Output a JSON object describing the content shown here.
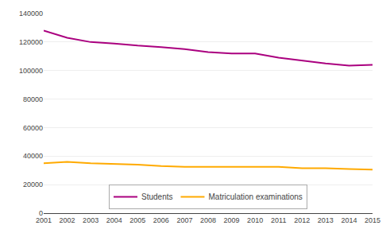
{
  "chart_data": {
    "type": "line",
    "x": [
      2001,
      2002,
      2003,
      2004,
      2005,
      2006,
      2007,
      2008,
      2009,
      2010,
      2011,
      2012,
      2013,
      2014,
      2015
    ],
    "series": [
      {
        "name": "Students",
        "color": "#aa007f",
        "values": [
          128000,
          123000,
          120000,
          119000,
          117500,
          116500,
          115000,
          113000,
          112000,
          112000,
          109000,
          107000,
          105000,
          103500,
          104000
        ]
      },
      {
        "name": "Matriculation examinations",
        "color": "#ffaa00",
        "values": [
          35000,
          36000,
          35000,
          34500,
          34000,
          33000,
          32500,
          32500,
          32500,
          32500,
          32500,
          31500,
          31500,
          31000,
          30500
        ]
      }
    ],
    "xlim": [
      2001,
      2015
    ],
    "xticks": [
      2001,
      2002,
      2003,
      2004,
      2005,
      2006,
      2007,
      2008,
      2009,
      2010,
      2011,
      2012,
      2013,
      2014,
      2015
    ],
    "ylim": [
      0,
      140000
    ],
    "yticks": [
      0,
      20000,
      40000,
      60000,
      80000,
      100000,
      120000,
      140000
    ],
    "grid": true,
    "legend": "lower center"
  }
}
